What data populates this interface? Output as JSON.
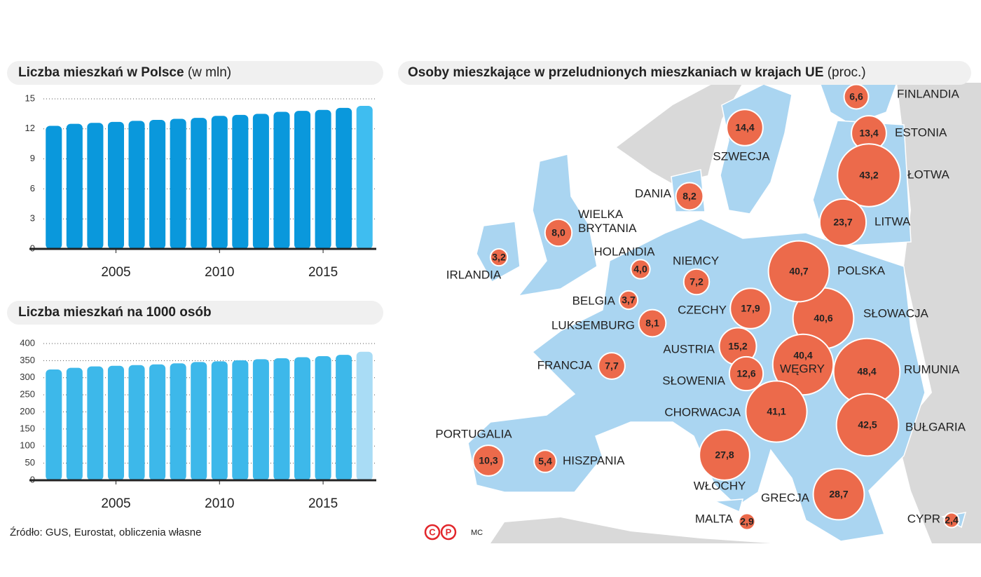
{
  "chart_data": [
    {
      "type": "bar",
      "title": "Liczba mieszkań w Polsce",
      "unit": "(w mln)",
      "x": [
        2002,
        2003,
        2004,
        2005,
        2006,
        2007,
        2008,
        2009,
        2010,
        2011,
        2012,
        2013,
        2014,
        2015,
        2016,
        2017
      ],
      "values": [
        12.3,
        12.5,
        12.6,
        12.7,
        12.8,
        12.9,
        13.0,
        13.1,
        13.3,
        13.4,
        13.5,
        13.7,
        13.8,
        13.9,
        14.1,
        14.3
      ],
      "colors": [
        "#0a98dc",
        "#0a98dc",
        "#0a98dc",
        "#0a98dc",
        "#0a98dc",
        "#0a98dc",
        "#0a98dc",
        "#0a98dc",
        "#0a98dc",
        "#0a98dc",
        "#0a98dc",
        "#0a98dc",
        "#0a98dc",
        "#0a98dc",
        "#0a98dc",
        "#3fbdf0"
      ],
      "xlim": [
        2001.5,
        2017.5
      ],
      "xticks": [
        2005,
        2010,
        2015
      ],
      "ylim": [
        0,
        15
      ],
      "yticks": [
        0,
        3,
        6,
        9,
        12,
        15
      ],
      "grid": true
    },
    {
      "type": "bar",
      "title": "Liczba mieszkań na 1000 osób",
      "x": [
        2002,
        2003,
        2004,
        2005,
        2006,
        2007,
        2008,
        2009,
        2010,
        2011,
        2012,
        2013,
        2014,
        2015,
        2016,
        2017
      ],
      "values": [
        324,
        329,
        333,
        335,
        337,
        339,
        342,
        346,
        348,
        351,
        354,
        357,
        360,
        363,
        367,
        376
      ],
      "colors": [
        "#3db8ea",
        "#3db8ea",
        "#3db8ea",
        "#3db8ea",
        "#3db8ea",
        "#3db8ea",
        "#3db8ea",
        "#3db8ea",
        "#3db8ea",
        "#3db8ea",
        "#3db8ea",
        "#3db8ea",
        "#3db8ea",
        "#3db8ea",
        "#3db8ea",
        "#a9dcf5"
      ],
      "xlim": [
        2001.5,
        2017.5
      ],
      "xticks": [
        2005,
        2010,
        2015
      ],
      "ylim": [
        0,
        400
      ],
      "yticks": [
        0,
        50,
        100,
        150,
        200,
        250,
        300,
        350,
        400
      ],
      "grid": true
    },
    {
      "type": "bubble_map",
      "title": "Osoby mieszkające w przeludnionych mieszkaniach w krajach UE",
      "unit": "(proc.)",
      "categories": [
        "FINLANDIA",
        "ESTONIA",
        "ŁOTWA",
        "SZWECJA",
        "DANIA",
        "LITWA",
        "WIELKA BRYTANIA",
        "IRLANDIA",
        "HOLANDIA",
        "NIEMCY",
        "BELGIA",
        "CZECHY",
        "LUKSEMBURG",
        "SŁOWACJA",
        "POLSKA",
        "AUSTRIA",
        "WĘGRY",
        "RUMUNIA",
        "FRANCJA",
        "SŁOWENIA",
        "CHORWACJA",
        "BUŁGARIA",
        "PORTUGALIA",
        "HISZPANIA",
        "WŁOCHY",
        "GRECJA",
        "MALTA",
        "CYPR"
      ],
      "values": [
        6.6,
        13.4,
        43.2,
        14.4,
        8.2,
        23.7,
        8.0,
        3.2,
        4.0,
        7.2,
        3.7,
        17.9,
        8.1,
        40.6,
        40.7,
        15.2,
        40.4,
        48.4,
        7.7,
        12.6,
        41.1,
        42.5,
        10.3,
        5.4,
        27.8,
        28.7,
        2.9,
        2.4
      ],
      "value_labels": [
        "6,6",
        "13,4",
        "43,2",
        "14,4",
        "8,2",
        "23,7",
        "8,0",
        "3,2",
        "4,0",
        "7,2",
        "3,7",
        "17,9",
        "8,1",
        "40,6",
        "40,7",
        "15,2",
        "40,4",
        "48,4",
        "7,7",
        "12,6",
        "41,1",
        "42,5",
        "10,3",
        "5,4",
        "27,8",
        "28,7",
        "2,9",
        "2,4"
      ],
      "color": "#ec6a4b"
    }
  ],
  "source": "Źródło: GUS, Eurostat,  obliczenia własne",
  "logo": [
    "C",
    "P"
  ],
  "credit": "MC"
}
